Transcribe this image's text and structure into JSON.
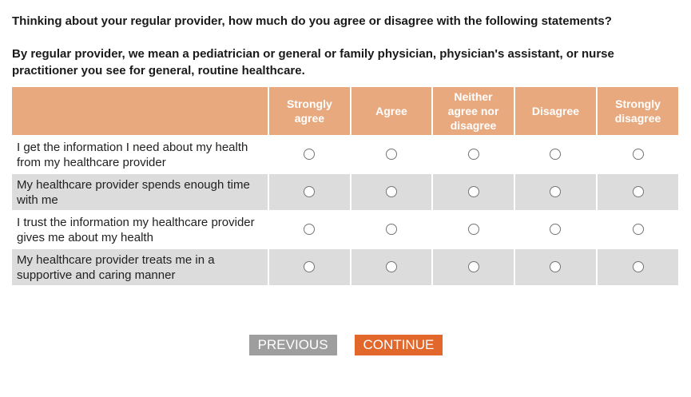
{
  "colors": {
    "header_bg": "#e9a97e",
    "header_text": "#ffffff",
    "row_alt_bg": "#dcdcdc",
    "radio_border": "#757575",
    "previous_button_bg": "#9e9e9e",
    "continue_button_bg": "#e2672b",
    "text": "#1a1a1a"
  },
  "intro": {
    "question": "Thinking about your regular provider, how much do you agree or disagree with the following statements?",
    "definition": "By regular provider, we mean a pediatrician or general or family physician, physician's assistant, or nurse practitioner you see for general, routine healthcare."
  },
  "matrix": {
    "columns": [
      "Strongly agree",
      "Agree",
      "Neither agree nor disagree",
      "Disagree",
      "Strongly disagree"
    ],
    "rows": [
      {
        "statement": "I get the information I need about my health from my healthcare provider",
        "selected": null
      },
      {
        "statement": "My healthcare provider spends enough time with me",
        "selected": null
      },
      {
        "statement": "I trust the information my healthcare provider gives me about my health",
        "selected": null
      },
      {
        "statement": "My healthcare provider treats me in a supportive and caring manner",
        "selected": null
      }
    ]
  },
  "buttons": {
    "previous": "PREVIOUS",
    "continue": "CONTINUE"
  }
}
